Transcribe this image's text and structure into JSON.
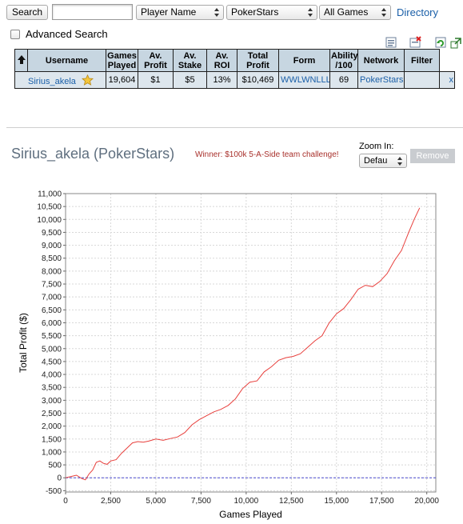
{
  "toolbar": {
    "search_label": "Search",
    "search_value": "",
    "player_field": "Player Name",
    "network": "PokerStars",
    "game_filter": "All Games",
    "directory_link": "Directory"
  },
  "advanced_search_label": "Advanced Search",
  "table": {
    "headers": [
      "Username",
      "Games Played",
      "Av. Profit",
      "Av. Stake",
      "Av. ROI",
      "Total Profit",
      "Form",
      "Ability /100",
      "Network",
      "Filter"
    ],
    "row": {
      "username": "Sirius_akela",
      "games_played": "19,604",
      "av_profit": "$1",
      "av_stake": "$5",
      "av_roi": "13%",
      "total_profit": "$10,469",
      "form": "WWLWNLLL",
      "ability": "69",
      "network": "PokerStars",
      "filter": "",
      "remove": "x"
    }
  },
  "player_panel": {
    "title": "Sirius_akela (PokerStars)",
    "award": "Winner: $100k 5-A-Side team challenge!",
    "zoom_label": "Zoom In:",
    "zoom_value": "Defau",
    "remove_button": "Remove"
  },
  "colors": {
    "line": "#e8403d",
    "baseline": "#4a4ad0",
    "header_bg": "#c7d6e1",
    "row_bg": "#dde6ed",
    "link": "#1a5fa8",
    "award": "#a8302b"
  },
  "chart_data": {
    "type": "line",
    "xlabel": "Games Played",
    "ylabel": "Total Profit ($)",
    "xlim": [
      0,
      20500
    ],
    "ylim": [
      -550,
      11000
    ],
    "xticks": [
      0,
      2500,
      5000,
      7500,
      10000,
      12500,
      15000,
      17500,
      20000
    ],
    "xtick_labels": [
      "0",
      "2,500",
      "5,000",
      "7,500",
      "10,000",
      "12,500",
      "15,000",
      "17,500",
      "20,000"
    ],
    "yticks": [
      -500,
      0,
      500,
      1000,
      1500,
      2000,
      2500,
      3000,
      3500,
      4000,
      4500,
      5000,
      5500,
      6000,
      6500,
      7000,
      7500,
      8000,
      8500,
      9000,
      9500,
      10000,
      10500,
      11000
    ],
    "ytick_labels": [
      "-500",
      "0",
      "500",
      "1,000",
      "1,500",
      "2,000",
      "2,500",
      "3,000",
      "3,500",
      "4,000",
      "4,500",
      "5,000",
      "5,500",
      "6,000",
      "6,500",
      "7,000",
      "7,500",
      "8,000",
      "8,500",
      "9,000",
      "9,500",
      "10,000",
      "10,500",
      "11,000"
    ],
    "grid": true,
    "series": [
      {
        "x": [
          0,
          300,
          600,
          900,
          1100,
          1300,
          1500,
          1700,
          1900,
          2100,
          2300,
          2500,
          2800,
          3100,
          3400,
          3700,
          4000,
          4300,
          4600,
          5000,
          5400,
          5800,
          6200,
          6600,
          7000,
          7400,
          7800,
          8200,
          8600,
          9000,
          9400,
          9800,
          10200,
          10600,
          11000,
          11400,
          11800,
          12200,
          12600,
          13000,
          13400,
          13800,
          14200,
          14600,
          15000,
          15400,
          15800,
          16200,
          16600,
          17000,
          17400,
          17800,
          18200,
          18600,
          19000,
          19300,
          19604
        ],
        "y": [
          0,
          50,
          100,
          -30,
          -80,
          150,
          300,
          600,
          650,
          560,
          520,
          650,
          700,
          950,
          1150,
          1350,
          1400,
          1380,
          1420,
          1500,
          1450,
          1520,
          1580,
          1750,
          2050,
          2250,
          2400,
          2550,
          2650,
          2800,
          3050,
          3450,
          3700,
          3750,
          4100,
          4300,
          4550,
          4650,
          4700,
          4800,
          5050,
          5300,
          5500,
          6000,
          6350,
          6550,
          6900,
          7300,
          7450,
          7400,
          7600,
          7900,
          8400,
          8800,
          9500,
          10000,
          10450
        ]
      }
    ]
  }
}
